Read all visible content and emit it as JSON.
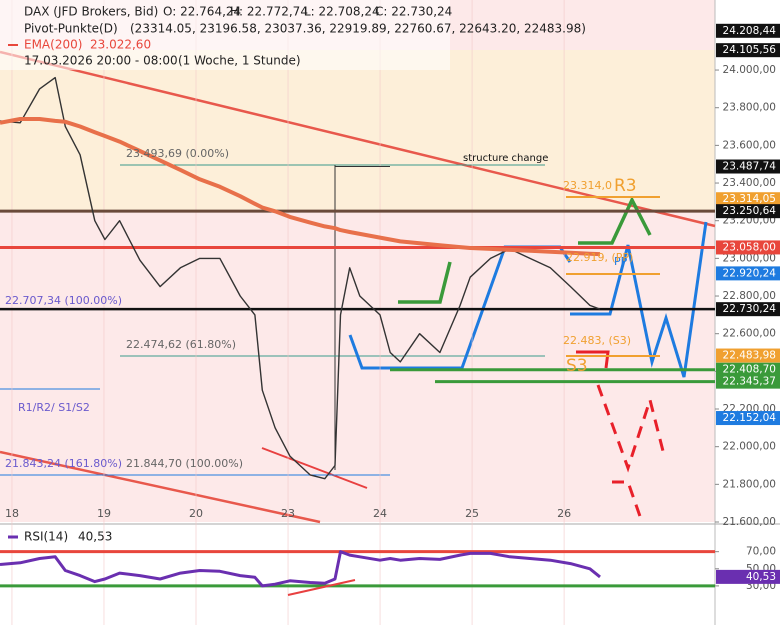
{
  "chart_data": [
    {
      "type": "line",
      "title": "DAX (JFD Brokers, Bid)",
      "ohlc": [
        "O: 22.764,24",
        "H: 22.772,74",
        "L: 22.708,24",
        "C: 22.730,24"
      ],
      "pivot_title": "Pivot-Punkte(D)",
      "pivot_values": "(23314.05, 23196.58, 23037.36, 22919.89, 22760.67, 22643.20, 22483.98)",
      "ema_label": "23.022,60",
      "period": "17.03.2026 20:00 - 08:00",
      "period_note": "(1 Woche, 1 Stunde)",
      "x": [
        -0.13,
        0.09,
        0.3,
        0.47,
        0.58,
        0.74,
        0.9,
        1.01,
        1.17,
        1.39,
        1.61,
        1.83,
        2.04,
        2.26,
        2.48,
        2.64,
        2.72,
        2.86,
        3.02,
        3.24,
        3.4,
        3.51,
        3.57,
        3.67,
        3.78,
        4.0,
        4.11,
        4.22,
        4.43,
        4.65,
        4.87,
        4.98,
        5.2,
        5.41,
        5.63,
        5.85,
        6.07,
        6.28,
        6.39
      ],
      "series": [
        {
          "name": "DAX (JFD Brokers, Bid)",
          "color": "#333333",
          "values": [
            23730,
            23720,
            23900,
            23960,
            23700,
            23550,
            23200,
            23100,
            23200,
            22990,
            22850,
            22950,
            23000,
            23000,
            22800,
            22700,
            22300,
            22100,
            21950,
            21850,
            21830,
            21900,
            22700,
            22950,
            22800,
            22700,
            22500,
            22450,
            22600,
            22500,
            22750,
            22900,
            23000,
            23050,
            23000,
            22950,
            22850,
            22750,
            22730.24
          ]
        },
        {
          "name": "EMA(200)",
          "color": "#e8704a",
          "values": [
            23720,
            23740,
            23740,
            23730,
            23725,
            23700,
            23670,
            23650,
            23620,
            23570,
            23520,
            23470,
            23420,
            23380,
            23330,
            23290,
            23270,
            23250,
            23220,
            23190,
            23170,
            23160,
            23150,
            23140,
            23130,
            23110,
            23100,
            23090,
            23080,
            23070,
            23060,
            23055,
            23050,
            23045,
            23040,
            23035,
            23030,
            23025,
            23022.6
          ]
        }
      ],
      "xlim": [
        -0.13,
        7.64
      ],
      "xticks": [
        {
          "value": 0,
          "label": "18"
        },
        {
          "value": 1,
          "label": "19"
        },
        {
          "value": 2,
          "label": "20"
        },
        {
          "value": 3,
          "label": "23"
        },
        {
          "value": 4,
          "label": "24"
        },
        {
          "value": 5,
          "label": "25"
        },
        {
          "value": 6,
          "label": "26"
        }
      ],
      "ylim": [
        21600,
        24372
      ],
      "yticks": [
        {
          "value": 21600,
          "label": "21.600,00"
        },
        {
          "value": 21800,
          "label": "21.800,00"
        },
        {
          "value": 22000,
          "label": "22.000,00"
        },
        {
          "value": 22200,
          "label": "22.200,00"
        },
        {
          "value": 22400,
          "label": "22.400,00"
        },
        {
          "value": 22600,
          "label": "22.600,00"
        },
        {
          "value": 22800,
          "label": "22.800,00"
        },
        {
          "value": 23000,
          "label": "23.000,00"
        },
        {
          "value": 23200,
          "label": "23.200,00"
        },
        {
          "value": 23400,
          "label": "23.400,00"
        },
        {
          "value": 23600,
          "label": "23.600,00"
        },
        {
          "value": 23800,
          "label": "23.800,00"
        },
        {
          "value": 24000,
          "label": "24.000,00"
        }
      ],
      "price_labels": [
        {
          "value": 24208.44,
          "label": "24.208,44",
          "color": "#111111"
        },
        {
          "value": 24105.56,
          "label": "24.105,56",
          "color": "#111111"
        },
        {
          "value": 23487.74,
          "label": "23.487,74",
          "color": "#111111"
        },
        {
          "value": 23314.05,
          "label": "23.314,05",
          "color": "#f0a030"
        },
        {
          "value": 23250.64,
          "label": "23.250,64",
          "color": "#111111"
        },
        {
          "value": 23058,
          "label": "23.058,00",
          "color": "#e8463c"
        },
        {
          "value": 22920.24,
          "label": "22.920,24",
          "color": "#1e7be0"
        },
        {
          "value": 22730.24,
          "label": "22.730,24",
          "color": "#111111"
        },
        {
          "value": 22483.98,
          "label": "22.483,98",
          "color": "#f0a030"
        },
        {
          "value": 22408.7,
          "label": "22.408,70",
          "color": "#3a9a3a"
        },
        {
          "value": 22345.37,
          "label": "22.345,37",
          "color": "#3a9a3a"
        },
        {
          "value": 22152.04,
          "label": "22.152,04",
          "color": "#1e7be0"
        }
      ],
      "annotations": [
        "23.493,69 (0.00%)",
        "structure change",
        "22.707,34 (100.00%)",
        "22.474,62 (61.80%)",
        "R1/R2/ S1/S2",
        "21.843,24 (161.80%)",
        "21.844,70 (100.00%)",
        "23.314,0",
        "R3",
        "PP",
        "22.919,  (PP)",
        "22.483,  (S3)",
        "S3"
      ]
    },
    {
      "type": "line",
      "title": "RSI(14)",
      "current_label": "40,53",
      "x": [
        -0.13,
        0.09,
        0.3,
        0.47,
        0.58,
        0.74,
        0.9,
        1.01,
        1.17,
        1.39,
        1.61,
        1.83,
        2.04,
        2.26,
        2.48,
        2.64,
        2.72,
        2.86,
        3.02,
        3.24,
        3.4,
        3.51,
        3.57,
        3.67,
        3.78,
        4.0,
        4.11,
        4.22,
        4.43,
        4.65,
        4.87,
        4.98,
        5.2,
        5.41,
        5.63,
        5.85,
        6.07,
        6.28,
        6.39
      ],
      "series": [
        {
          "name": "RSI(14)",
          "color": "#6a2fb0",
          "values": [
            55,
            57,
            62,
            64,
            48,
            42,
            35,
            38,
            45,
            42,
            38,
            45,
            48,
            47,
            42,
            40,
            30,
            32,
            36,
            34,
            33,
            38,
            70,
            66,
            64,
            60,
            62,
            60,
            62,
            61,
            66,
            68,
            68,
            64,
            62,
            60,
            56,
            50,
            40.53
          ]
        }
      ],
      "xlim": [
        -0.13,
        7.64
      ],
      "ylim": [
        10,
        100
      ],
      "yticks": [
        {
          "value": 30,
          "label": "30,00"
        },
        {
          "value": 50,
          "label": "50,00"
        },
        {
          "value": 70,
          "label": "70,00"
        }
      ]
    }
  ]
}
